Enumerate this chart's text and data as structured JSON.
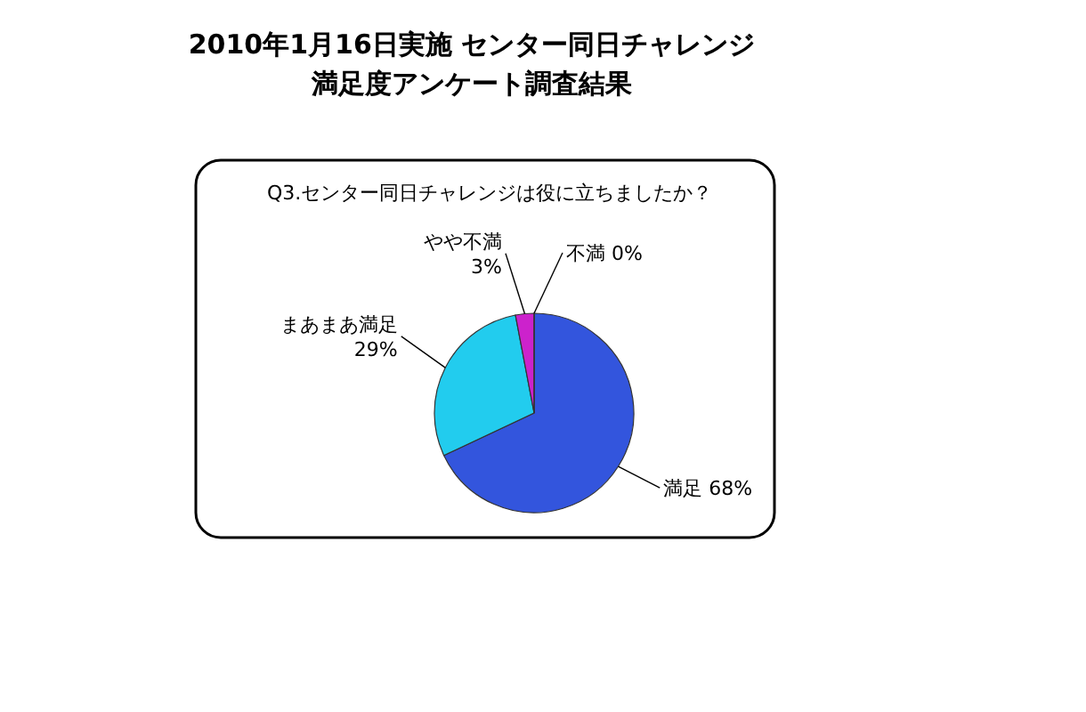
{
  "chart_data": {
    "type": "pie",
    "title": "2010年1月16日実施  センター同日チャレンジ",
    "subtitle": "満足度アンケート調査結果",
    "annotations": [
      "Q3.センター同日チャレンジは役に立ちましたか？"
    ],
    "categories": [
      "満足",
      "まあまあ満足",
      "やや不満",
      "不満"
    ],
    "values": [
      68,
      29,
      3,
      0
    ],
    "value_labels": [
      "68%",
      "29%",
      "3%",
      "0%"
    ],
    "colors": [
      "#3355dd",
      "#22ccee",
      "#cc22cc",
      "#8844aa"
    ]
  }
}
